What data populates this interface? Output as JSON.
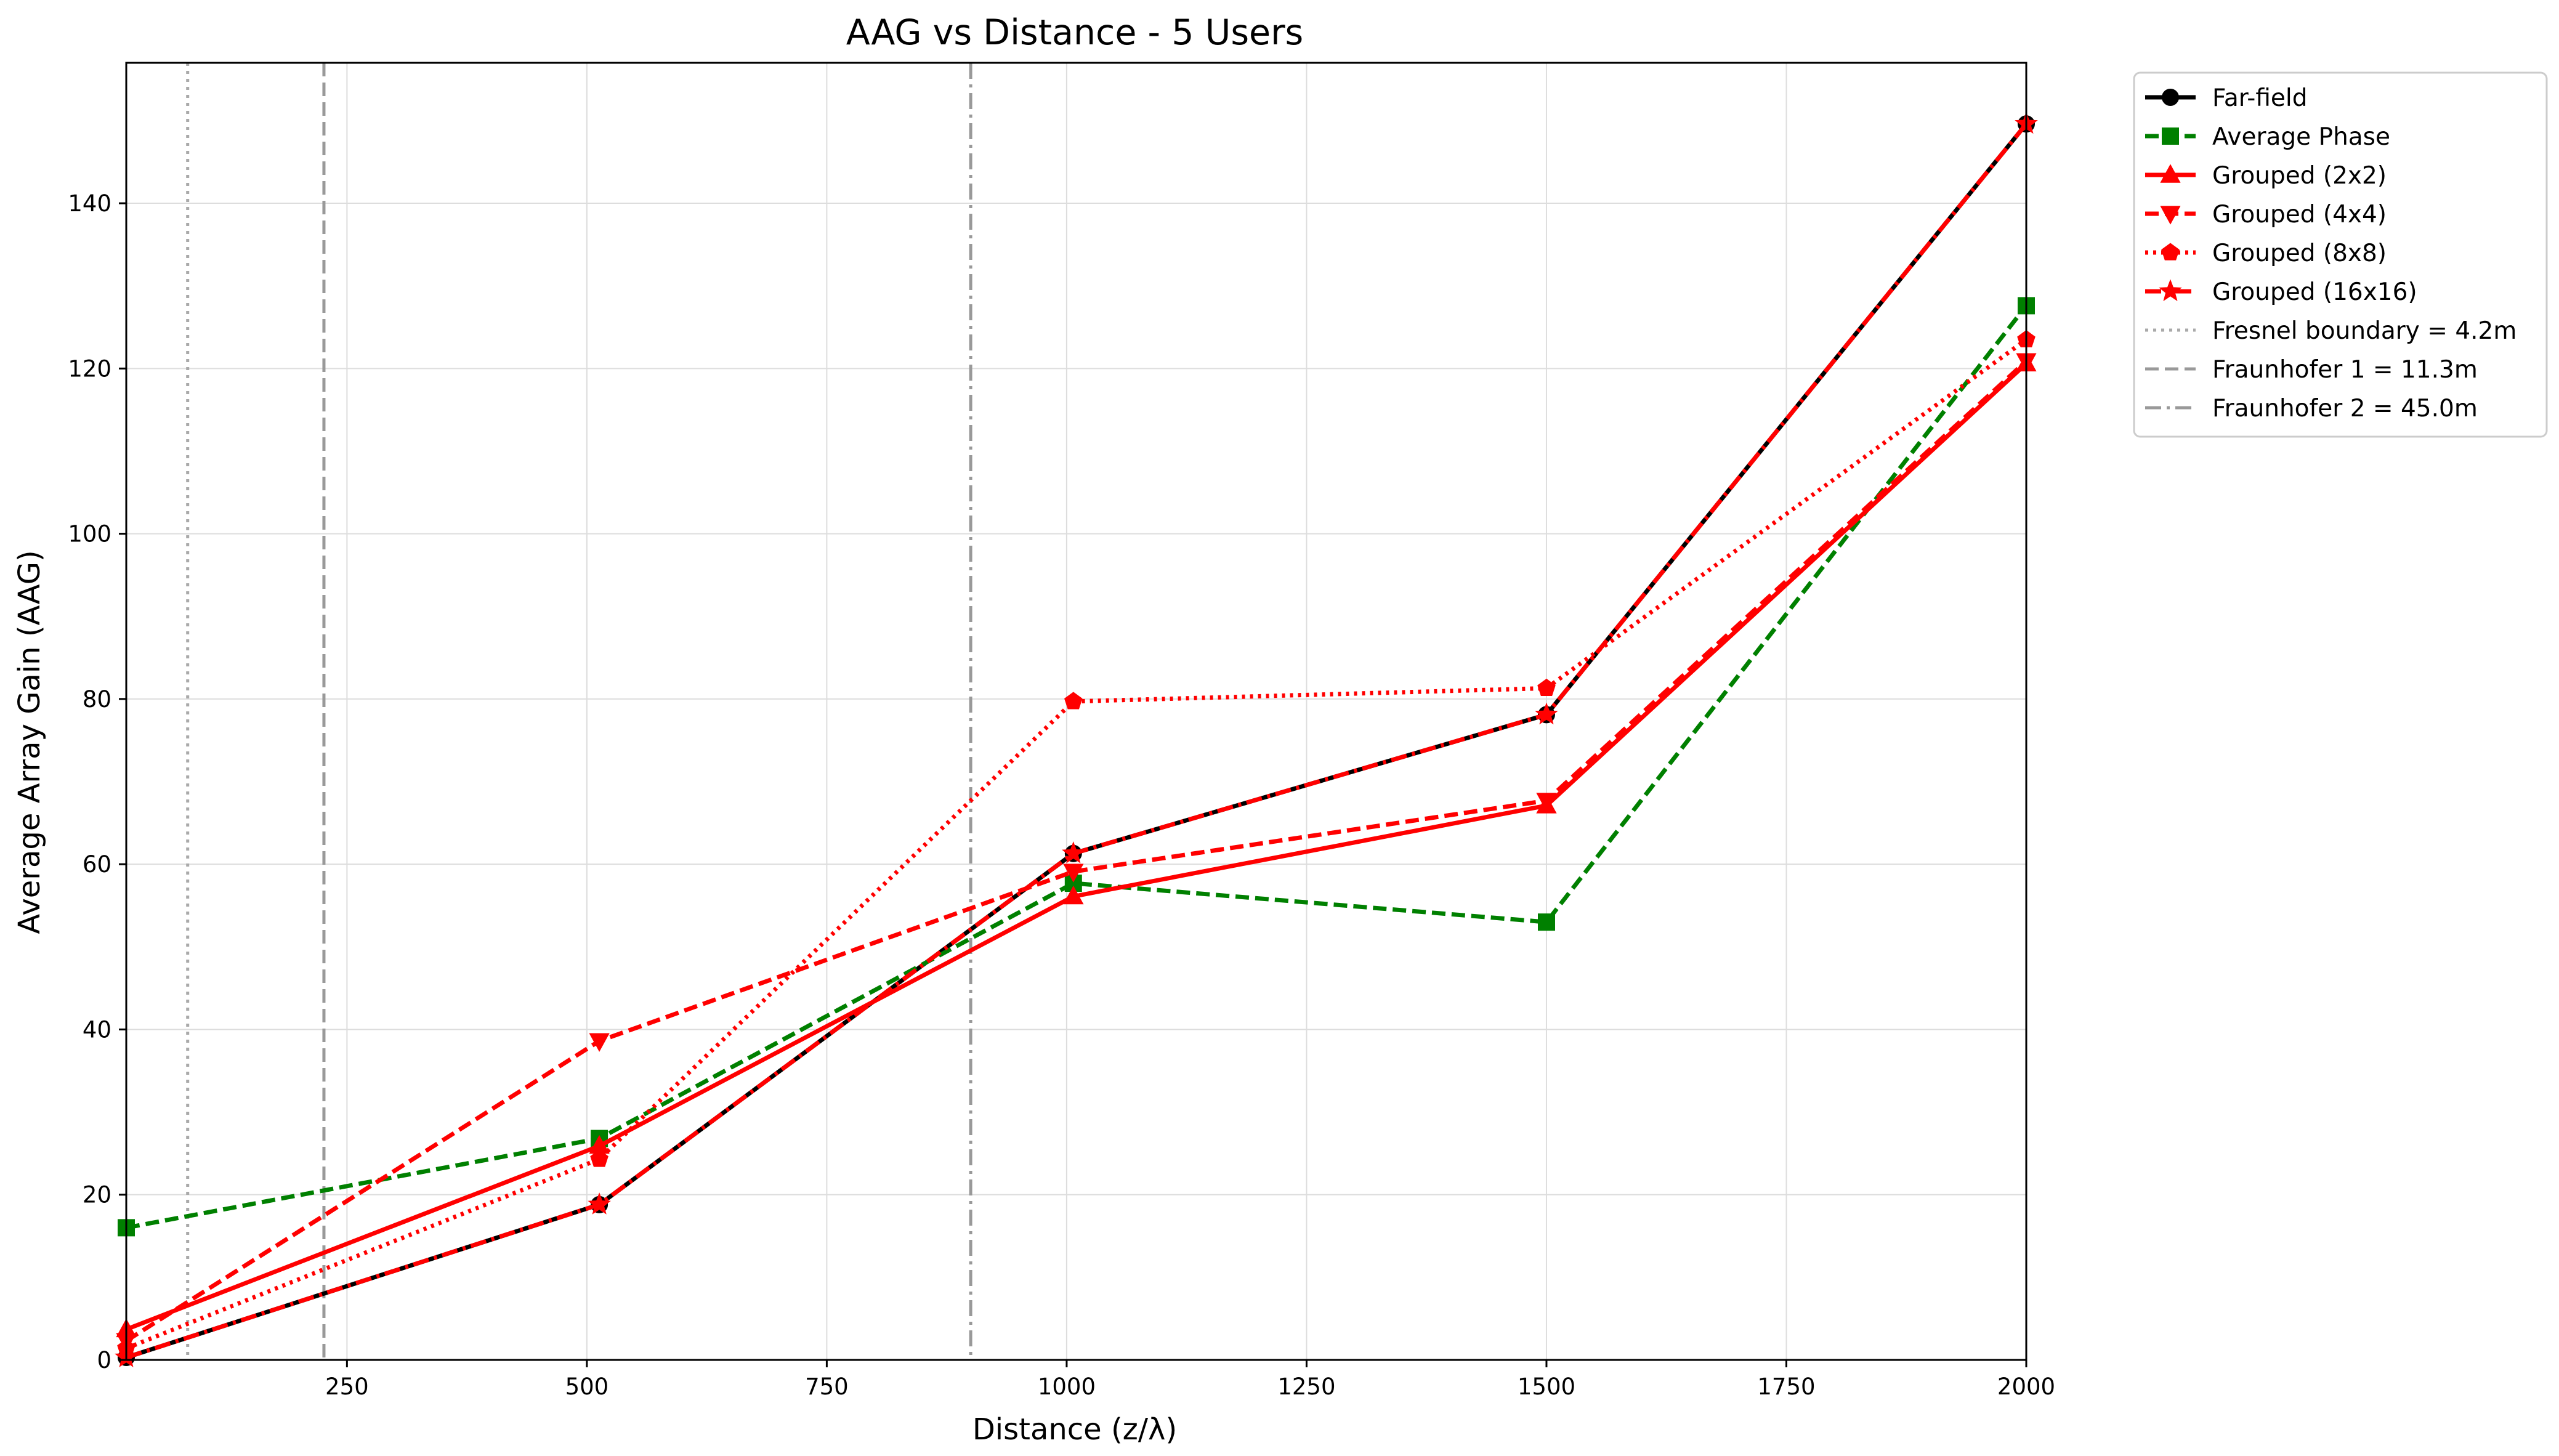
{
  "chart_data": {
    "type": "line",
    "title": "AAG vs Distance - 5 Users",
    "xlabel": "Distance (z/λ)",
    "ylabel": "Average Array Gain (AAG)",
    "xlim": [
      20,
      2000
    ],
    "ylim": [
      0,
      157
    ],
    "xticks": [
      250,
      500,
      750,
      1000,
      1250,
      1500,
      1750,
      2000
    ],
    "yticks": [
      0,
      20,
      40,
      60,
      80,
      100,
      120,
      140
    ],
    "grid": true,
    "legend_position": "outside-right-top",
    "x": [
      20,
      513,
      1007,
      1500,
      2000
    ],
    "series": [
      {
        "name": "Far-field",
        "values": [
          0.3,
          18.8,
          61.3,
          78.1,
          149.6
        ],
        "color": "#000000",
        "linestyle": "solid",
        "marker": "circle"
      },
      {
        "name": "Average Phase",
        "values": [
          16.0,
          26.8,
          57.7,
          53.0,
          127.6
        ],
        "color": "#008000",
        "linestyle": "dashed",
        "marker": "square"
      },
      {
        "name": "Grouped (2x2)",
        "values": [
          3.7,
          25.9,
          56.1,
          67.1,
          120.6
        ],
        "color": "#ff0000",
        "linestyle": "solid",
        "marker": "triangle-up"
      },
      {
        "name": "Grouped (4x4)",
        "values": [
          2.3,
          38.6,
          59.1,
          67.7,
          120.9
        ],
        "color": "#ff0000",
        "linestyle": "dashed",
        "marker": "triangle-down"
      },
      {
        "name": "Grouped (8x8)",
        "values": [
          1.4,
          24.3,
          79.7,
          81.3,
          123.5
        ],
        "color": "#ff0000",
        "linestyle": "dotted",
        "marker": "pentagon"
      },
      {
        "name": "Grouped (16x16)",
        "values": [
          0.3,
          18.8,
          61.3,
          78.1,
          149.6
        ],
        "color": "#ff0000",
        "linestyle": "dashdot",
        "marker": "star"
      }
    ],
    "reference_lines": [
      {
        "name": "Fresnel boundary = 4.2m",
        "x": 84,
        "color": "#aaaaaa",
        "linestyle": "dotted"
      },
      {
        "name": "Fraunhofer 1 = 11.3m",
        "x": 226,
        "color": "#999999",
        "linestyle": "dashed"
      },
      {
        "name": "Fraunhofer 2 = 45.0m",
        "x": 900,
        "color": "#999999",
        "linestyle": "dashdot"
      }
    ]
  }
}
